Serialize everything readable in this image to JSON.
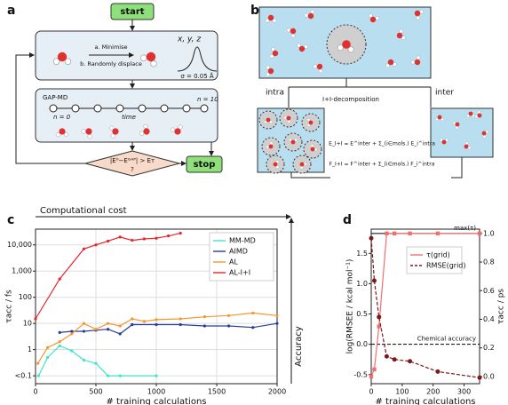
{
  "diagram_a": {
    "panel_label": "a",
    "start": "start",
    "minimise": "a. Minimise",
    "displace": "b. Randomly displace",
    "xyz": "x, y, z",
    "sigma": "σ = 0.05 Å",
    "gap_md": "GAP-MD",
    "n_start": "n = 0",
    "n_end": "n = 10",
    "time": "time",
    "condition": "|E⁰−Eᴳᴬᴾ| > Eᴛ",
    "question": "?",
    "stop": "stop"
  },
  "diagram_b": {
    "panel_label": "b",
    "intra": "intra",
    "inter": "inter",
    "decomposition": "I+I-decomposition",
    "energy": "E_I+I = E^inter + Σ_(i∈mols.) E_i^intra",
    "force": "F_I+I = F^inter + Σ_(i∈mols.) F_i^intra"
  },
  "chart_data": [
    {
      "type": "line",
      "panel_label": "c",
      "xlabel": "# training calculations",
      "ylabel": "τacc / fs",
      "ylog": true,
      "grid": true,
      "legend": "upper right",
      "annotations": [
        "Computational cost",
        "Accuracy"
      ],
      "xlim": [
        0,
        2000
      ],
      "xticks": [
        0,
        500,
        1000,
        1500,
        2000
      ],
      "ylim": [
        0.05,
        40000
      ],
      "yticks": [
        {
          "value": 0.1,
          "label": "<0.1"
        },
        1,
        10,
        100,
        {
          "value": 1000,
          "label": "1,000"
        },
        {
          "value": 10000,
          "label": "10,000"
        }
      ],
      "series": [
        {
          "name": "MM-MD",
          "color": "#3ee6c8",
          "x": [
            25,
            100,
            200,
            300,
            400,
            500,
            600,
            700,
            1000
          ],
          "values": [
            0.1,
            0.5,
            1.4,
            0.9,
            0.4,
            0.3,
            0.1,
            0.1,
            0.1
          ]
        },
        {
          "name": "AIMD",
          "color": "#283c9a",
          "x": [
            200,
            300,
            400,
            500,
            600,
            700,
            800,
            1000,
            1200,
            1400,
            1600,
            1800,
            2000
          ],
          "values": [
            4.5,
            5,
            5,
            5.5,
            6,
            4,
            9,
            9,
            9,
            8,
            8,
            7,
            10
          ]
        },
        {
          "name": "AL",
          "color": "#f5962d",
          "x": [
            20,
            100,
            200,
            300,
            400,
            500,
            600,
            700,
            800,
            900,
            1000,
            1200,
            1400,
            1600,
            1800,
            2000
          ],
          "values": [
            0.3,
            1.2,
            2,
            4,
            10,
            6,
            10,
            8,
            15,
            12,
            14,
            15,
            18,
            20,
            25,
            20
          ]
        },
        {
          "name": "AL-I+I",
          "color": "#e8242a",
          "x": [
            0,
            200,
            400,
            500,
            600,
            700,
            800,
            900,
            1000,
            1100,
            1200
          ],
          "values": [
            15,
            500,
            7000,
            10000,
            14000,
            20000,
            15000,
            17000,
            18000,
            22000,
            28000
          ]
        }
      ]
    },
    {
      "type": "line",
      "panel_label": "d",
      "xlabel": "# training calculations",
      "ylabel": "log(RMSEE / kcal mol⁻¹)",
      "y2label": "τacc / ps",
      "grid": false,
      "legend": "upper center",
      "xlim": [
        0,
        350
      ],
      "xticks": [
        0,
        100,
        200,
        300
      ],
      "ylim": [
        -0.65,
        1.9
      ],
      "yticks": [
        -0.5,
        {
          "value": 0,
          "label": "0.0"
        },
        0.5,
        {
          "value": 1,
          "label": "1.0"
        },
        1.5
      ],
      "y2lim": [
        -0.05,
        1.03
      ],
      "y2ticks": [
        {
          "value": 0,
          "label": "0.0"
        },
        0.2,
        0.4,
        0.6,
        0.8,
        {
          "value": 1,
          "label": "1.0"
        }
      ],
      "hlines": [
        {
          "label": "max(τ)",
          "value": 1,
          "axis": "y2",
          "style": "solid",
          "color": "#000000"
        },
        {
          "label": "Chemical accuracy",
          "value": 0,
          "style": "dashed",
          "color": "#000000"
        }
      ],
      "series": [
        {
          "name": "τ(grid)",
          "color": "#f07070",
          "axis": "y2",
          "marker": "square",
          "style": "solid",
          "x": [
            0,
            10,
            25,
            50,
            75,
            125,
            215,
            350
          ],
          "values": [
            0,
            0.05,
            0.35,
            1,
            1,
            1,
            1,
            1
          ]
        },
        {
          "name": "RMSE(grid)",
          "color": "#7a1a1a",
          "marker": "circle",
          "style": "dashed",
          "x": [
            0,
            10,
            25,
            50,
            75,
            125,
            215,
            350
          ],
          "values": [
            1.75,
            1.05,
            0.45,
            -0.2,
            -0.25,
            -0.28,
            -0.45,
            -0.55
          ]
        }
      ]
    }
  ]
}
